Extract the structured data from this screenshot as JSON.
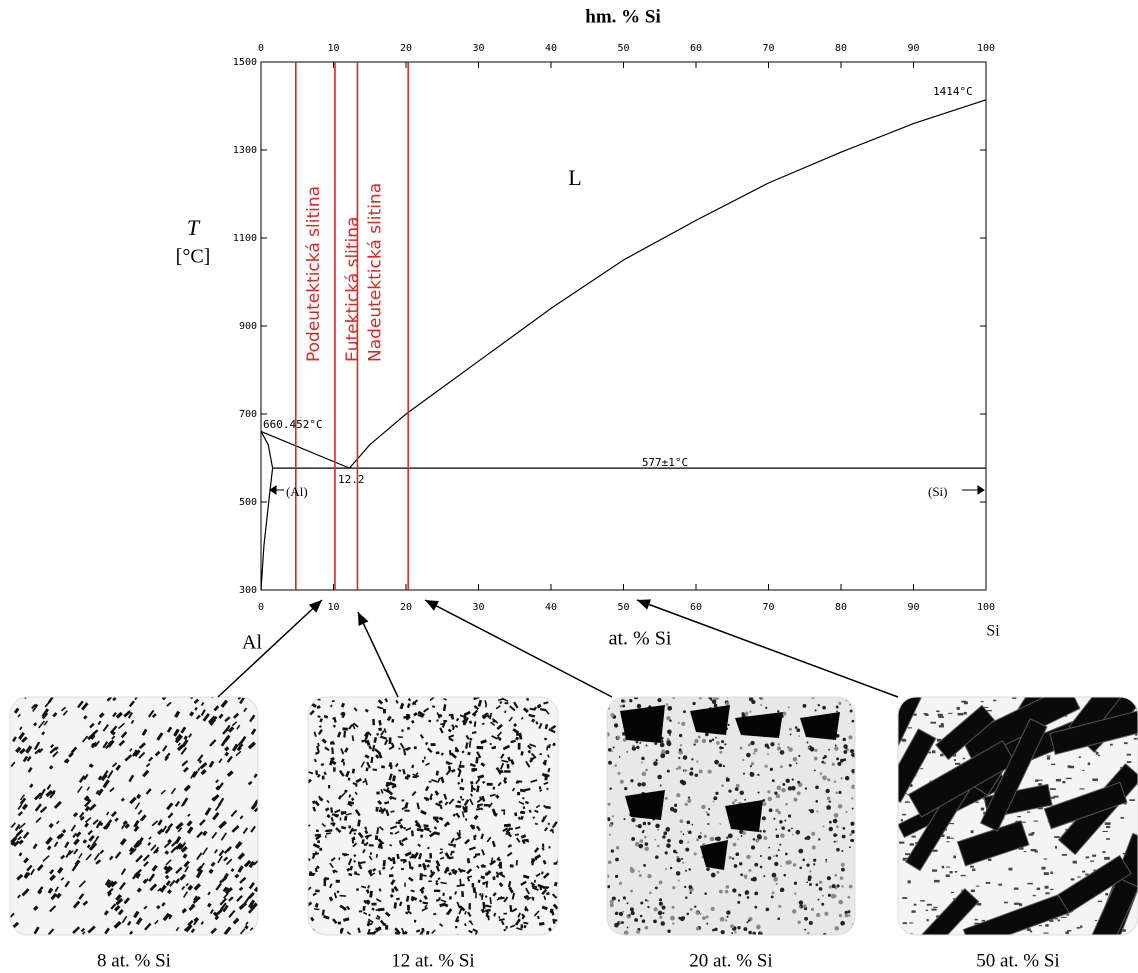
{
  "chart_data": {
    "type": "line",
    "x_label": "at. % Si",
    "x2_label": "hm. % Si",
    "y_label": "T",
    "y_unit": "[°C]",
    "xlim": [
      0,
      100
    ],
    "xticks": [
      0,
      10,
      20,
      30,
      40,
      50,
      60,
      70,
      80,
      90,
      100
    ],
    "x2lim": [
      0,
      100
    ],
    "x2ticks": [
      0,
      10,
      20,
      30,
      40,
      50,
      60,
      70,
      80,
      90,
      100
    ],
    "ylim": [
      300,
      1500
    ],
    "yticks": [
      300,
      500,
      700,
      900,
      1100,
      1300,
      1500
    ],
    "color": "#000000",
    "lines": [
      {
        "x": [
          0,
          12.2
        ],
        "y": [
          660.452,
          577
        ]
      },
      {
        "x": [
          12.2,
          15,
          20,
          25,
          30,
          40,
          50,
          60,
          70,
          80,
          90,
          100
        ],
        "y": [
          577,
          630,
          700,
          760,
          820,
          940,
          1050,
          1140,
          1225,
          1295,
          1360,
          1414
        ]
      },
      {
        "x": [
          1.6,
          100
        ],
        "y": [
          577,
          577
        ]
      },
      {
        "x": [
          0,
          0.4,
          1.2,
          1.6,
          1.0,
          0
        ],
        "y": [
          300,
          400,
          520,
          577,
          630,
          660.452
        ]
      }
    ],
    "compositions_color": "#d42a2a",
    "compositions": [
      {
        "label": "Podeutektická slitina",
        "x": 4.8
      },
      {
        "label": "Eutektická slitina",
        "x": 10.2
      },
      {
        "label": "Nadeutektická slitina",
        "x": 13.3
      },
      {
        "x": 20.3
      }
    ],
    "annotations": [
      "660.452°C",
      "577±1°C",
      "12.2",
      "1414°C",
      "(Al)",
      "(Si)",
      "L",
      "Al",
      "Si"
    ]
  },
  "micrographs": [
    {
      "caption": "8 at. % Si"
    },
    {
      "caption": "12 at. % Si"
    },
    {
      "caption": "20 at. % Si"
    },
    {
      "caption": "50 at. % Si"
    }
  ]
}
